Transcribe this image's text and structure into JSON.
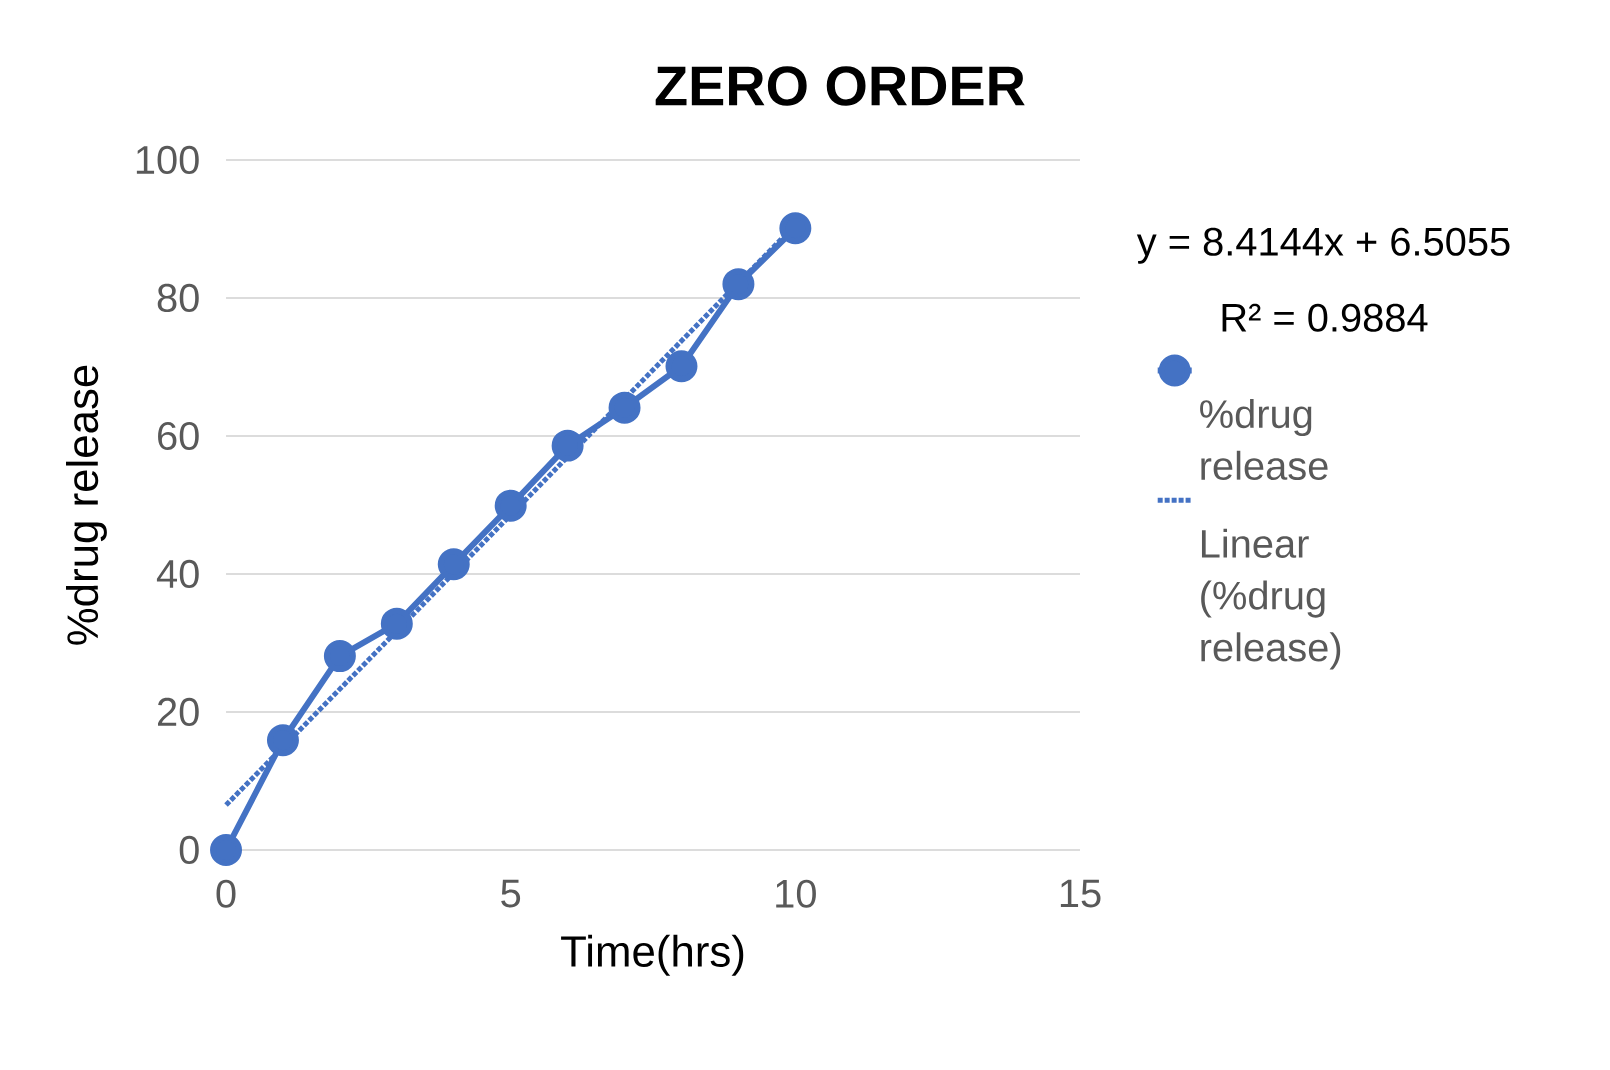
{
  "chart_data": {
    "type": "line",
    "title": "ZERO ORDER",
    "xlabel": "Time(hrs)",
    "ylabel": "%drug release",
    "x": [
      0,
      1,
      2,
      3,
      4,
      5,
      6,
      7,
      8,
      9,
      10
    ],
    "series": [
      {
        "name": "%drug release",
        "color": "#4472c4",
        "marker": "circle",
        "values": [
          0,
          15.9,
          28.1,
          32.8,
          41.4,
          49.9,
          58.6,
          64.1,
          70.1,
          82.0,
          90.1
        ]
      },
      {
        "name": "Linear (%drug release)",
        "color": "#4472c4",
        "marker": "none",
        "line_style": "dotted",
        "x": [
          0,
          10
        ],
        "values": [
          6.5,
          90.6
        ]
      }
    ],
    "xlim": [
      0,
      15
    ],
    "ylim": [
      0,
      100
    ],
    "xticks": [
      0,
      5,
      10,
      15
    ],
    "yticks": [
      0,
      20,
      40,
      60,
      80,
      100
    ],
    "grid": "y",
    "legend": "right",
    "annotations": [
      "y = 8.4144x + 6.5055",
      "R² = 0.9884"
    ]
  }
}
